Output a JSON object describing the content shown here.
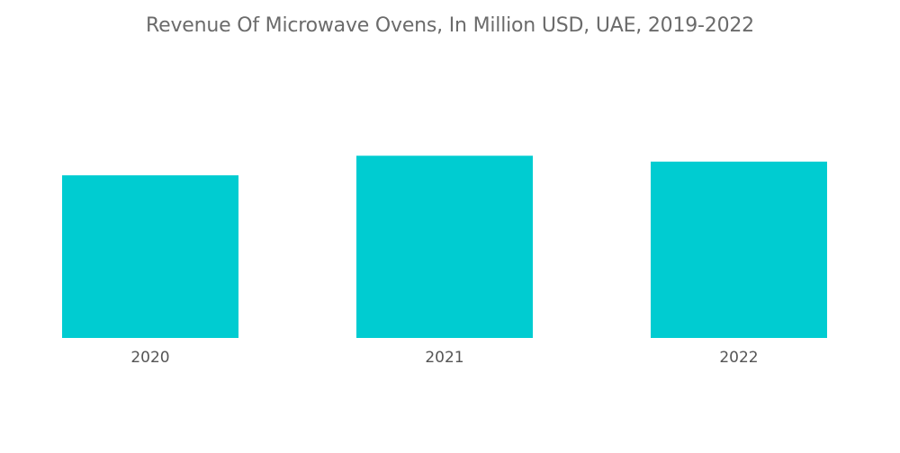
{
  "chart_data": {
    "type": "bar",
    "title": "Revenue Of Microwave Ovens, In Million USD, UAE, 2019-2022",
    "categories": [
      "2020",
      "2021",
      "2022"
    ],
    "values": [
      83,
      93,
      90
    ],
    "xlabel": "",
    "ylabel": "",
    "ylim": [
      0,
      100
    ],
    "grid": false,
    "legend": "none",
    "bar_color": "#00ccd1"
  }
}
